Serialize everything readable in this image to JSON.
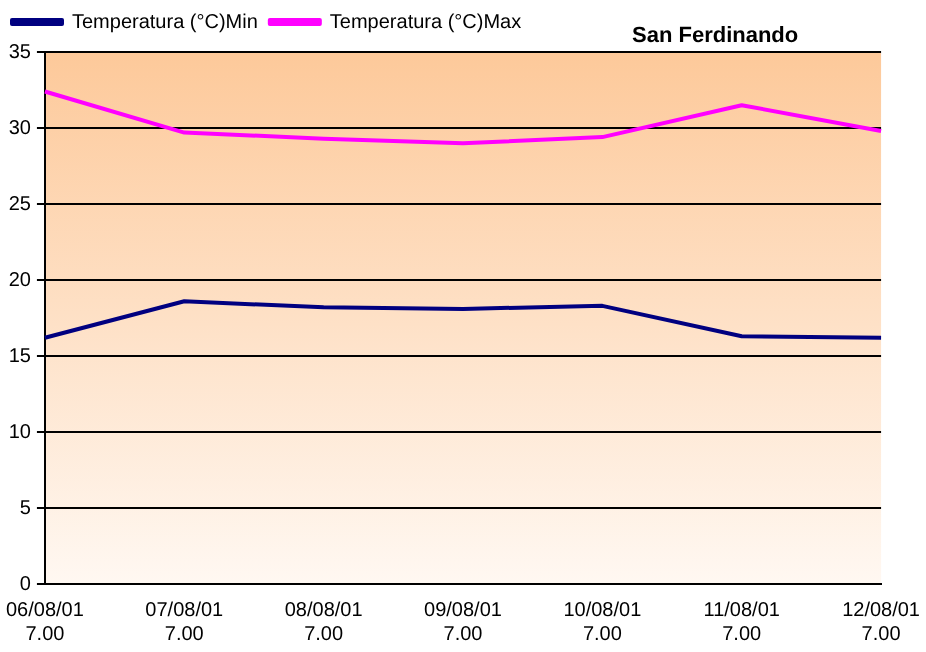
{
  "chart_data": {
    "type": "line",
    "title": "San Ferdinando",
    "categories": [
      "06/08/01 7.00",
      "07/08/01 7.00",
      "08/08/01 7.00",
      "09/08/01 7.00",
      "10/08/01 7.00",
      "11/08/01 7.00",
      "12/08/01 7.00"
    ],
    "series": [
      {
        "name": "Temperatura (°C)Min",
        "color": "#000080",
        "values": [
          16.2,
          18.6,
          18.2,
          18.1,
          18.3,
          16.3,
          16.2
        ]
      },
      {
        "name": "Temperatura (°C)Max",
        "color": "#ff00ff",
        "values": [
          32.4,
          29.7,
          29.3,
          29.0,
          29.4,
          31.5,
          29.8
        ]
      }
    ],
    "ylim": [
      0,
      35
    ],
    "yticks": [
      0,
      5,
      10,
      15,
      20,
      25,
      30,
      35
    ],
    "grid": "y",
    "legend": "top left",
    "marker": "none",
    "line_style": "solid"
  }
}
